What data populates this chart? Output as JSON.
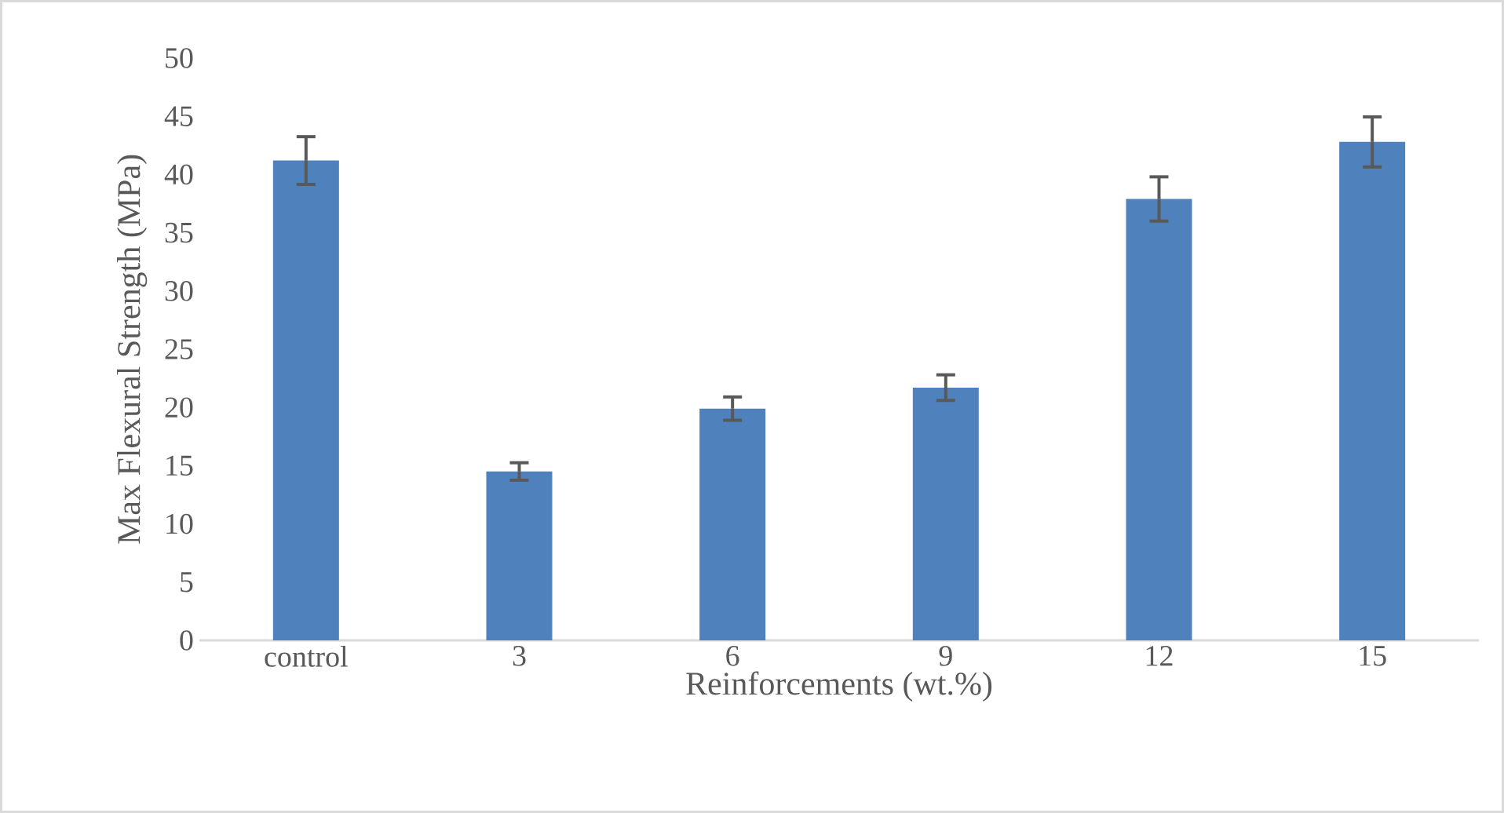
{
  "chart_data": {
    "type": "bar",
    "xlabel": "Reinforcements (wt.%)",
    "ylabel": "Max Flexural Strength (MPa)",
    "categories": [
      "control",
      "3",
      "6",
      "9",
      "12",
      "15"
    ],
    "values": [
      41.2,
      14.5,
      19.9,
      21.7,
      37.9,
      42.8
    ],
    "errors": [
      2.05,
      0.75,
      1.0,
      1.1,
      1.9,
      2.15
    ],
    "color": "#4f81bd",
    "ylim": [
      0,
      50
    ],
    "yticks": [
      0,
      5,
      10,
      15,
      20,
      25,
      30,
      35,
      40,
      45,
      50
    ],
    "grid": false
  }
}
